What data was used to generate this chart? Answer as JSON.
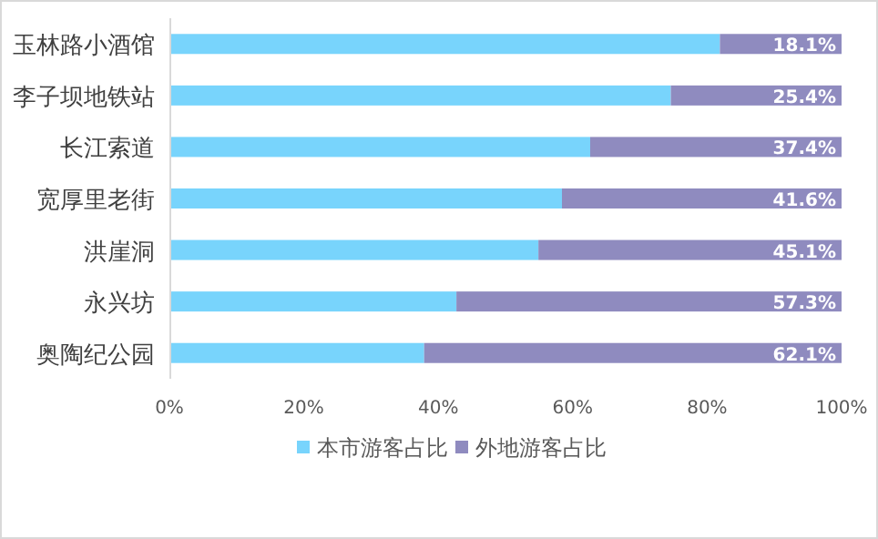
{
  "chart_data": {
    "type": "bar",
    "orientation": "horizontal",
    "stacked": true,
    "categories": [
      "玉林路小酒馆",
      "李子坝地铁站",
      "长江索道",
      "宽厚里老街",
      "洪崖洞",
      "永兴坊",
      "奥陶纪公园"
    ],
    "series": [
      {
        "name": "本市游客占比",
        "color": "#78d4fc",
        "values": [
          81.9,
          74.6,
          62.6,
          58.4,
          54.9,
          42.7,
          37.9
        ]
      },
      {
        "name": "外地游客占比",
        "color": "#8f8bbf",
        "values": [
          18.1,
          25.4,
          37.4,
          41.6,
          45.1,
          57.3,
          62.1
        ],
        "value_labels": [
          "18.1%",
          "25.4%",
          "37.4%",
          "41.6%",
          "45.1%",
          "57.3%",
          "62.1%"
        ]
      }
    ],
    "xlim": [
      0,
      100
    ],
    "xticks": [
      {
        "value": 0,
        "label": "0%"
      },
      {
        "value": 20,
        "label": "20%"
      },
      {
        "value": 40,
        "label": "40%"
      },
      {
        "value": 60,
        "label": "60%"
      },
      {
        "value": 80,
        "label": "80%"
      },
      {
        "value": 100,
        "label": "100%"
      }
    ],
    "grid": false,
    "legend": "bottom"
  }
}
